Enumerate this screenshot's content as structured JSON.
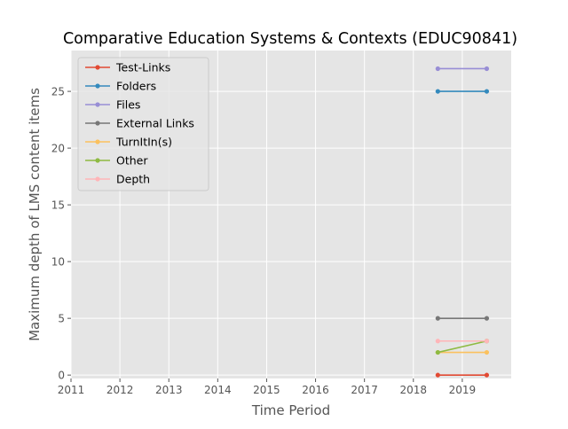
{
  "chart_data": {
    "type": "line",
    "title": "Comparative Education Systems & Contexts (EDUC90841)",
    "xlabel": "Time Period",
    "ylabel": "Maximum depth of LMS content items",
    "xlim": [
      2011,
      2020.0
    ],
    "ylim": [
      -0.3,
      28.6
    ],
    "x_ticks": [
      "2011",
      "2012",
      "2013",
      "2014",
      "2015",
      "2016",
      "2017",
      "2018",
      "2019"
    ],
    "y_ticks": [
      "0",
      "5",
      "10",
      "15",
      "20",
      "25"
    ],
    "grid": true,
    "legend_position": "top-left",
    "x": [
      2018.5,
      2019.5
    ],
    "series": [
      {
        "name": "Test-Links",
        "values": [
          0,
          0
        ],
        "color": "#e24a33"
      },
      {
        "name": "Folders",
        "values": [
          25,
          25
        ],
        "color": "#348abd"
      },
      {
        "name": "Files",
        "values": [
          27,
          27
        ],
        "color": "#988ed5"
      },
      {
        "name": "External Links",
        "values": [
          5,
          5
        ],
        "color": "#777777"
      },
      {
        "name": "TurnItIn(s)",
        "values": [
          2,
          2
        ],
        "color": "#fbc15e"
      },
      {
        "name": "Other",
        "values": [
          2,
          3
        ],
        "color": "#8eba42"
      },
      {
        "name": "Depth",
        "values": [
          3,
          3
        ],
        "color": "#ffb5b8"
      }
    ]
  }
}
